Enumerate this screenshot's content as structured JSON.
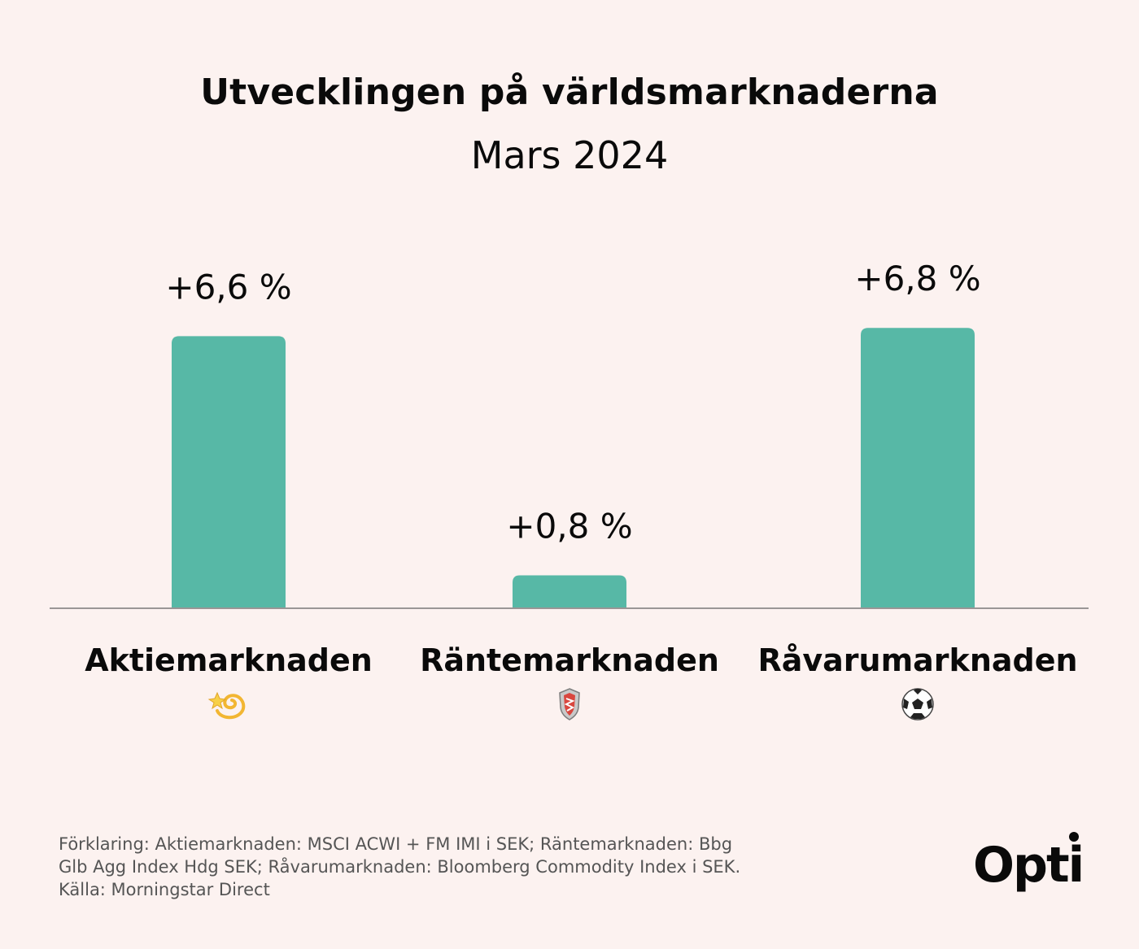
{
  "header": {
    "title": "Utvecklingen på världsmarknaderna",
    "subtitle": "Mars 2024"
  },
  "chart_data": {
    "type": "bar",
    "categories": [
      "Aktiemarknaden",
      "Räntemarknaden",
      "Råvarumarknaden"
    ],
    "values": [
      6.6,
      0.8,
      6.8
    ],
    "value_labels": [
      "+6,6 %",
      "+0,8 %",
      "+6,8 %"
    ],
    "category_icons": [
      "dizzy-icon",
      "shield-icon",
      "soccer-ball-icon"
    ],
    "title": "Utvecklingen på världsmarknaderna",
    "subtitle": "Mars 2024",
    "xlabel": "",
    "ylabel": "",
    "grid": false,
    "legend": "none",
    "bar_color": "#57b8a6",
    "baseline_color": "#9a9696"
  },
  "footnote": {
    "lines": [
      "Förklaring: Aktiemarknaden: MSCI ACWI + FM IMI i SEK; Räntemarknaden: Bbg",
      "Glb Agg Index Hdg SEK; Råvarumarknaden: Bloomberg Commodity Index i SEK.",
      "Källa: Morningstar Direct"
    ]
  },
  "brand": {
    "logo_text": "Opti"
  }
}
